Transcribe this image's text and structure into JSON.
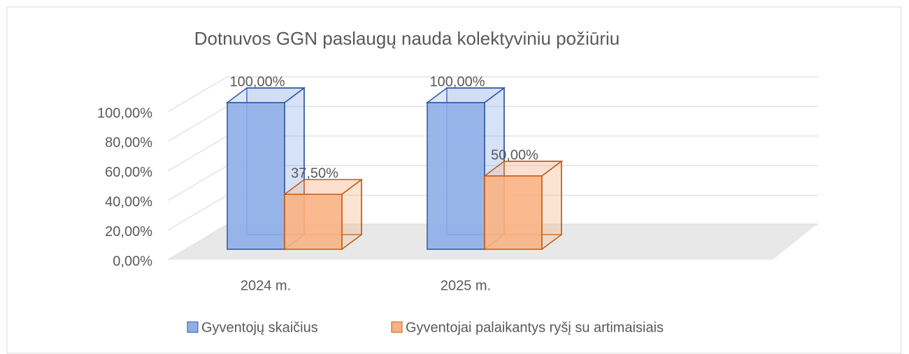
{
  "chart_data": {
    "type": "bar3d",
    "title": "Dotnuvos GGN paslaugų nauda kolektyviniu požiūriu",
    "categories": [
      "2024 m.",
      "2025 m."
    ],
    "series": [
      {
        "name": "Gyventojų skaičius",
        "color": "#8eaee8",
        "edge": "#2f55a4",
        "values": [
          100,
          100
        ],
        "value_labels": [
          "100,00%",
          "100,00%"
        ]
      },
      {
        "name": "Gyventojai palaikantys ryšį su artimaisiais",
        "color": "#f9b283",
        "edge": "#c55a11",
        "values": [
          37.5,
          50
        ],
        "value_labels": [
          "37,50%",
          "50,00%"
        ]
      }
    ],
    "ylim": [
      0,
      100
    ],
    "yticks": [
      {
        "value": 0,
        "label": "0,00%"
      },
      {
        "value": 20,
        "label": "20,00%"
      },
      {
        "value": 40,
        "label": "40,00%"
      },
      {
        "value": 60,
        "label": "60,00%"
      },
      {
        "value": 80,
        "label": "80,00%"
      },
      {
        "value": 100,
        "label": "100,00%"
      }
    ],
    "grid": true
  }
}
